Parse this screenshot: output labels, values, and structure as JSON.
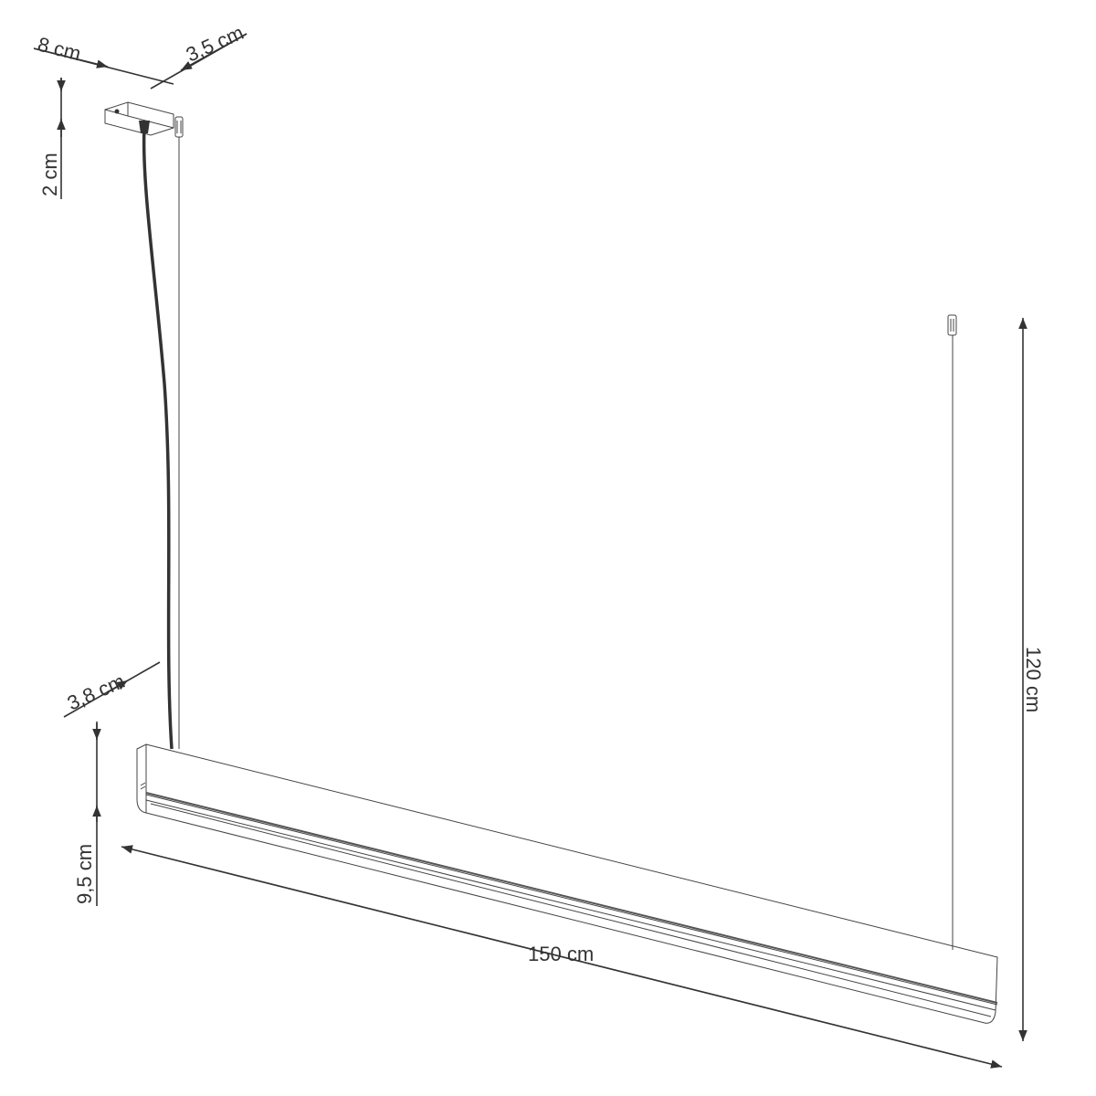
{
  "diagram": {
    "dimensions": {
      "canopy_length": "8 cm",
      "canopy_width": "3,5 cm",
      "canopy_height": "2 cm",
      "lamp_depth": "3,8 cm",
      "lamp_height": "9,5 cm",
      "lamp_length": "150 cm",
      "max_suspension": "120 cm"
    },
    "colors": {
      "line": "#333333",
      "background": "#ffffff"
    }
  }
}
